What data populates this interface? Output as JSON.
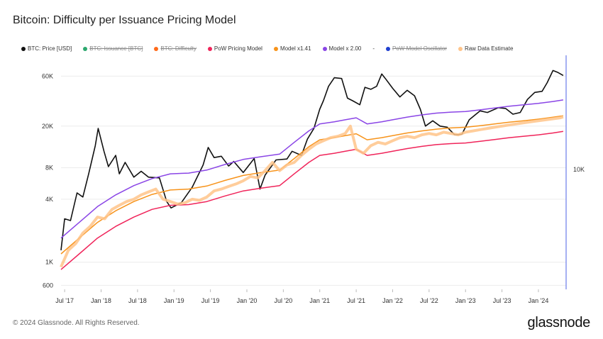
{
  "chart_data": {
    "type": "line",
    "title": "Bitcoin: Difficulty per Issuance Pricing Model",
    "y_scale": "log",
    "ylim": [
      550,
      95000
    ],
    "y_ticks": [
      {
        "label": "600",
        "value": 600
      },
      {
        "label": "1K",
        "value": 1000
      },
      {
        "label": "4K",
        "value": 4000
      },
      {
        "label": "8K",
        "value": 8000
      },
      {
        "label": "20K",
        "value": 20000
      },
      {
        "label": "60K",
        "value": 60000
      }
    ],
    "y2_label": "10K",
    "xlim": [
      2017.45,
      2024.38
    ],
    "x_ticks": [
      {
        "label": "Jul '17",
        "value": 2017.5
      },
      {
        "label": "Jan '18",
        "value": 2018.0
      },
      {
        "label": "Jul '18",
        "value": 2018.5
      },
      {
        "label": "Jan '19",
        "value": 2019.0
      },
      {
        "label": "Jul '19",
        "value": 2019.5
      },
      {
        "label": "Jan '20",
        "value": 2020.0
      },
      {
        "label": "Jul '20",
        "value": 2020.5
      },
      {
        "label": "Jan '21",
        "value": 2021.0
      },
      {
        "label": "Jul '21",
        "value": 2021.5
      },
      {
        "label": "Jan '22",
        "value": 2022.0
      },
      {
        "label": "Jul '22",
        "value": 2022.5
      },
      {
        "label": "Jan '23",
        "value": 2023.0
      },
      {
        "label": "Jul '23",
        "value": 2023.5
      },
      {
        "label": "Jan '24",
        "value": 2024.0
      }
    ],
    "series": [
      {
        "name": "BTC: Price [USD]",
        "color": "#111111",
        "visible": true,
        "points": [
          [
            2017.45,
            1300
          ],
          [
            2017.5,
            2600
          ],
          [
            2017.58,
            2500
          ],
          [
            2017.67,
            4600
          ],
          [
            2017.75,
            4200
          ],
          [
            2017.83,
            7000
          ],
          [
            2017.92,
            13000
          ],
          [
            2017.96,
            19000
          ],
          [
            2018.04,
            11500
          ],
          [
            2018.1,
            8200
          ],
          [
            2018.2,
            10500
          ],
          [
            2018.25,
            7000
          ],
          [
            2018.33,
            9000
          ],
          [
            2018.45,
            6500
          ],
          [
            2018.55,
            7400
          ],
          [
            2018.65,
            6500
          ],
          [
            2018.8,
            6400
          ],
          [
            2018.9,
            3800
          ],
          [
            2018.96,
            3300
          ],
          [
            2019.1,
            3700
          ],
          [
            2019.25,
            5200
          ],
          [
            2019.4,
            8500
          ],
          [
            2019.47,
            12500
          ],
          [
            2019.55,
            10000
          ],
          [
            2019.65,
            10300
          ],
          [
            2019.75,
            8300
          ],
          [
            2019.82,
            9200
          ],
          [
            2019.95,
            7200
          ],
          [
            2020.1,
            9800
          ],
          [
            2020.18,
            5000
          ],
          [
            2020.25,
            6800
          ],
          [
            2020.4,
            9500
          ],
          [
            2020.55,
            9700
          ],
          [
            2020.62,
            11500
          ],
          [
            2020.75,
            10500
          ],
          [
            2020.83,
            15000
          ],
          [
            2020.92,
            19000
          ],
          [
            2021.0,
            29000
          ],
          [
            2021.05,
            35000
          ],
          [
            2021.12,
            48000
          ],
          [
            2021.2,
            58000
          ],
          [
            2021.3,
            57000
          ],
          [
            2021.38,
            37000
          ],
          [
            2021.45,
            35000
          ],
          [
            2021.55,
            32000
          ],
          [
            2021.62,
            47000
          ],
          [
            2021.7,
            45000
          ],
          [
            2021.78,
            48000
          ],
          [
            2021.85,
            63000
          ],
          [
            2021.9,
            57000
          ],
          [
            2022.0,
            46000
          ],
          [
            2022.1,
            38000
          ],
          [
            2022.2,
            44000
          ],
          [
            2022.3,
            39000
          ],
          [
            2022.38,
            29000
          ],
          [
            2022.45,
            20000
          ],
          [
            2022.55,
            22500
          ],
          [
            2022.65,
            20000
          ],
          [
            2022.75,
            19500
          ],
          [
            2022.85,
            16500
          ],
          [
            2022.95,
            16700
          ],
          [
            2023.05,
            23000
          ],
          [
            2023.2,
            28000
          ],
          [
            2023.3,
            27000
          ],
          [
            2023.45,
            30000
          ],
          [
            2023.55,
            29500
          ],
          [
            2023.65,
            26000
          ],
          [
            2023.75,
            27000
          ],
          [
            2023.85,
            36000
          ],
          [
            2023.95,
            42000
          ],
          [
            2024.05,
            43000
          ],
          [
            2024.12,
            52000
          ],
          [
            2024.2,
            68000
          ],
          [
            2024.27,
            65000
          ],
          [
            2024.34,
            61000
          ]
        ]
      },
      {
        "name": "BTC: Issuance [BTC]",
        "color": "#2ca86e",
        "visible": false,
        "points": []
      },
      {
        "name": "BTC: Difficulty",
        "color": "#ff6a1a",
        "visible": false,
        "points": []
      },
      {
        "name": "PoW Pricing Model",
        "color": "#f0245a",
        "visible": true,
        "points": [
          [
            2017.45,
            850
          ],
          [
            2017.7,
            1200
          ],
          [
            2017.95,
            1700
          ],
          [
            2018.2,
            2200
          ],
          [
            2018.45,
            2700
          ],
          [
            2018.7,
            3200
          ],
          [
            2018.95,
            3500
          ],
          [
            2019.2,
            3550
          ],
          [
            2019.45,
            3800
          ],
          [
            2019.7,
            4300
          ],
          [
            2019.95,
            4800
          ],
          [
            2020.2,
            5100
          ],
          [
            2020.45,
            5400
          ],
          [
            2020.65,
            7000
          ],
          [
            2020.85,
            9000
          ],
          [
            2021.0,
            10500
          ],
          [
            2021.2,
            11000
          ],
          [
            2021.35,
            11500
          ],
          [
            2021.5,
            12000
          ],
          [
            2021.65,
            10500
          ],
          [
            2021.85,
            11000
          ],
          [
            2022.0,
            11500
          ],
          [
            2022.2,
            12200
          ],
          [
            2022.4,
            12800
          ],
          [
            2022.6,
            13300
          ],
          [
            2022.8,
            13600
          ],
          [
            2023.0,
            13800
          ],
          [
            2023.2,
            14300
          ],
          [
            2023.4,
            14900
          ],
          [
            2023.6,
            15500
          ],
          [
            2023.8,
            16000
          ],
          [
            2024.0,
            16500
          ],
          [
            2024.2,
            17200
          ],
          [
            2024.34,
            17800
          ]
        ]
      },
      {
        "name": "Model x1.41",
        "color": "#f7931a",
        "visible": true,
        "points": [
          [
            2017.45,
            1200
          ],
          [
            2017.7,
            1700
          ],
          [
            2017.95,
            2400
          ],
          [
            2018.2,
            3100
          ],
          [
            2018.45,
            3800
          ],
          [
            2018.7,
            4450
          ],
          [
            2018.95,
            4900
          ],
          [
            2019.2,
            5000
          ],
          [
            2019.45,
            5350
          ],
          [
            2019.7,
            6050
          ],
          [
            2019.95,
            6750
          ],
          [
            2020.2,
            7200
          ],
          [
            2020.45,
            7600
          ],
          [
            2020.65,
            9800
          ],
          [
            2020.85,
            12700
          ],
          [
            2021.0,
            14800
          ],
          [
            2021.2,
            15500
          ],
          [
            2021.35,
            16200
          ],
          [
            2021.5,
            16900
          ],
          [
            2021.65,
            14800
          ],
          [
            2021.85,
            15500
          ],
          [
            2022.0,
            16200
          ],
          [
            2022.2,
            17200
          ],
          [
            2022.4,
            18000
          ],
          [
            2022.6,
            18700
          ],
          [
            2022.8,
            19200
          ],
          [
            2023.0,
            19500
          ],
          [
            2023.2,
            20200
          ],
          [
            2023.4,
            21000
          ],
          [
            2023.6,
            21800
          ],
          [
            2023.8,
            22500
          ],
          [
            2024.0,
            23300
          ],
          [
            2024.2,
            24300
          ],
          [
            2024.34,
            25100
          ]
        ]
      },
      {
        "name": "Model x 2.00",
        "color": "#8a45e6",
        "visible": true,
        "points": [
          [
            2017.45,
            1700
          ],
          [
            2017.7,
            2400
          ],
          [
            2017.95,
            3400
          ],
          [
            2018.2,
            4400
          ],
          [
            2018.45,
            5400
          ],
          [
            2018.7,
            6300
          ],
          [
            2018.95,
            7000
          ],
          [
            2019.2,
            7100
          ],
          [
            2019.45,
            7600
          ],
          [
            2019.7,
            8600
          ],
          [
            2019.95,
            9600
          ],
          [
            2020.2,
            10200
          ],
          [
            2020.45,
            10800
          ],
          [
            2020.65,
            14000
          ],
          [
            2020.85,
            18000
          ],
          [
            2021.0,
            21000
          ],
          [
            2021.2,
            22000
          ],
          [
            2021.35,
            23000
          ],
          [
            2021.5,
            24000
          ],
          [
            2021.65,
            21000
          ],
          [
            2021.85,
            22000
          ],
          [
            2022.0,
            23000
          ],
          [
            2022.2,
            24400
          ],
          [
            2022.4,
            25600
          ],
          [
            2022.6,
            26600
          ],
          [
            2022.8,
            27200
          ],
          [
            2023.0,
            27600
          ],
          [
            2023.2,
            28600
          ],
          [
            2023.4,
            29800
          ],
          [
            2023.6,
            31000
          ],
          [
            2023.8,
            32000
          ],
          [
            2024.0,
            33000
          ],
          [
            2024.2,
            34400
          ],
          [
            2024.34,
            35600
          ]
        ]
      },
      {
        "name": "-",
        "color": "#999999",
        "visible": false,
        "points": []
      },
      {
        "name": "PoW Model Oscillator",
        "color": "#2040d0",
        "visible": false,
        "points": []
      },
      {
        "name": "Raw Data Estimate",
        "color": "#ffc48a",
        "visible": true,
        "points": [
          [
            2017.45,
            900
          ],
          [
            2017.55,
            1300
          ],
          [
            2017.65,
            1500
          ],
          [
            2017.75,
            1900
          ],
          [
            2017.85,
            2200
          ],
          [
            2017.95,
            2700
          ],
          [
            2018.05,
            2600
          ],
          [
            2018.15,
            3200
          ],
          [
            2018.25,
            3500
          ],
          [
            2018.35,
            3800
          ],
          [
            2018.45,
            4000
          ],
          [
            2018.55,
            4400
          ],
          [
            2018.65,
            4700
          ],
          [
            2018.75,
            5000
          ],
          [
            2018.85,
            4000
          ],
          [
            2018.95,
            3800
          ],
          [
            2019.05,
            3600
          ],
          [
            2019.15,
            3700
          ],
          [
            2019.25,
            4000
          ],
          [
            2019.35,
            3900
          ],
          [
            2019.45,
            4200
          ],
          [
            2019.55,
            4800
          ],
          [
            2019.65,
            5000
          ],
          [
            2019.75,
            5300
          ],
          [
            2019.85,
            5600
          ],
          [
            2019.95,
            6000
          ],
          [
            2020.05,
            6600
          ],
          [
            2020.15,
            6400
          ],
          [
            2020.25,
            7500
          ],
          [
            2020.35,
            9000
          ],
          [
            2020.45,
            7500
          ],
          [
            2020.55,
            8500
          ],
          [
            2020.65,
            9000
          ],
          [
            2020.75,
            10500
          ],
          [
            2020.85,
            12000
          ],
          [
            2020.95,
            13500
          ],
          [
            2021.05,
            14500
          ],
          [
            2021.15,
            15500
          ],
          [
            2021.25,
            16000
          ],
          [
            2021.35,
            17000
          ],
          [
            2021.42,
            20000
          ],
          [
            2021.5,
            12000
          ],
          [
            2021.6,
            11000
          ],
          [
            2021.7,
            13000
          ],
          [
            2021.8,
            14000
          ],
          [
            2021.9,
            13500
          ],
          [
            2022.0,
            14500
          ],
          [
            2022.1,
            15500
          ],
          [
            2022.2,
            16000
          ],
          [
            2022.3,
            15500
          ],
          [
            2022.4,
            16500
          ],
          [
            2022.5,
            17000
          ],
          [
            2022.6,
            16500
          ],
          [
            2022.7,
            17500
          ],
          [
            2022.8,
            17000
          ],
          [
            2022.9,
            16500
          ],
          [
            2023.0,
            17500
          ],
          [
            2023.1,
            18000
          ],
          [
            2023.2,
            18500
          ],
          [
            2023.3,
            19000
          ],
          [
            2023.4,
            19500
          ],
          [
            2023.5,
            20000
          ],
          [
            2023.6,
            20500
          ],
          [
            2023.7,
            21000
          ],
          [
            2023.8,
            21500
          ],
          [
            2023.9,
            22000
          ],
          [
            2024.0,
            22500
          ],
          [
            2024.1,
            23000
          ],
          [
            2024.2,
            23500
          ],
          [
            2024.3,
            24000
          ],
          [
            2024.34,
            24500
          ]
        ]
      }
    ]
  },
  "footer": {
    "copyright": "© 2024 Glassnode. All Rights Reserved.",
    "brand": "glassnode"
  }
}
